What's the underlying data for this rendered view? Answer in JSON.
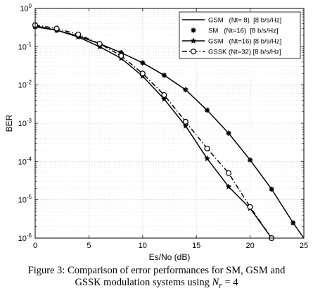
{
  "chart_data": {
    "type": "line",
    "xlabel": "Es/No (dB)",
    "ylabel": "BER",
    "xlim": [
      0,
      25
    ],
    "ylim": [
      1e-06,
      1
    ],
    "yscale": "log",
    "grid": true,
    "legend_position": "top-right",
    "x_ticks": [
      0,
      5,
      10,
      15,
      20,
      25
    ],
    "y_ticks": [
      {
        "value": 1,
        "base": "10",
        "exp": "0"
      },
      {
        "value": 0.1,
        "base": "10",
        "exp": "-1"
      },
      {
        "value": 0.01,
        "base": "10",
        "exp": "-2"
      },
      {
        "value": 0.001,
        "base": "10",
        "exp": "-3"
      },
      {
        "value": 0.0001,
        "base": "10",
        "exp": "-4"
      },
      {
        "value": 1e-05,
        "base": "10",
        "exp": "-5"
      },
      {
        "value": 1e-06,
        "base": "10",
        "exp": "-6"
      }
    ],
    "series": [
      {
        "name": "GSM   (Nt= 8)  [8 b/s/Hz]",
        "line": "solid",
        "marker": "none",
        "x": [
          0,
          2,
          4,
          6,
          8,
          10,
          12,
          14,
          16,
          18,
          20,
          22,
          24,
          25
        ],
        "y": [
          0.33,
          0.27,
          0.19,
          0.12,
          0.07,
          0.038,
          0.018,
          0.0075,
          0.0022,
          0.00055,
          0.00011,
          1.9e-05,
          2.5e-06,
          1e-06
        ]
      },
      {
        "name": "SM   (Nt=16)  [8 b/s/Hz]",
        "line": "none",
        "marker": "asterisk",
        "x": [
          0,
          2,
          4,
          6,
          8,
          10,
          12,
          14,
          16,
          18,
          20,
          22,
          24
        ],
        "y": [
          0.33,
          0.27,
          0.19,
          0.12,
          0.07,
          0.038,
          0.018,
          0.0075,
          0.0022,
          0.00055,
          0.00011,
          1.9e-05,
          2.5e-06
        ]
      },
      {
        "name": "GSM   (Nt=16) [8 b/s/Hz]",
        "line": "solid",
        "marker": "star",
        "x": [
          0,
          2,
          4,
          6,
          8,
          10,
          12,
          14,
          16,
          18,
          20,
          22
        ],
        "y": [
          0.35,
          0.27,
          0.18,
          0.1,
          0.05,
          0.017,
          0.0043,
          0.00085,
          0.00012,
          2.2e-05,
          6e-06,
          1e-06
        ]
      },
      {
        "name": "GSSK (Nt=32) [8 b/s/Hz]",
        "line": "dashdot",
        "marker": "circle",
        "x": [
          0,
          2,
          4,
          6,
          8,
          10,
          12,
          14,
          16,
          18,
          20,
          22
        ],
        "y": [
          0.37,
          0.3,
          0.21,
          0.12,
          0.058,
          0.02,
          0.0055,
          0.0011,
          0.00022,
          5e-05,
          6.5e-06,
          1e-06
        ]
      }
    ]
  },
  "caption": {
    "line1": "Figure 3: Comparison of error performances for SM, GSM and",
    "line2_prefix": "GSSK modulation systems using ",
    "math_var": "N",
    "math_sub": "r",
    "math_rest": " = 4"
  }
}
